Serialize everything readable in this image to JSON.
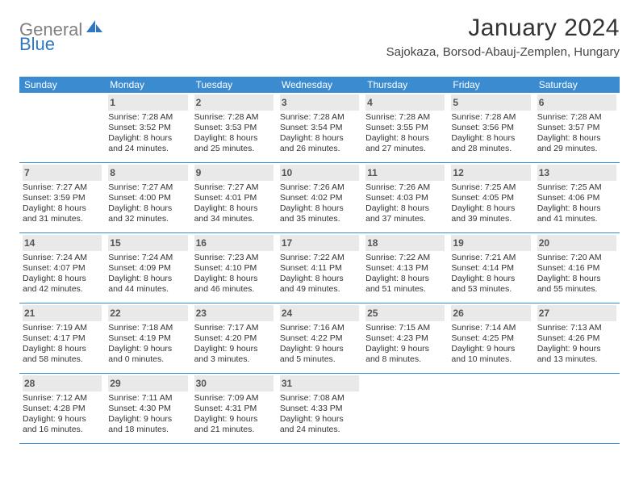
{
  "brand": {
    "text_gray": "General",
    "text_blue": "Blue"
  },
  "title": "January 2024",
  "location": "Sajokaza, Borsod-Abauj-Zemplen, Hungary",
  "colors": {
    "header_bg": "#3a8bd0",
    "daynum_bg": "#e9e9e9",
    "rule": "#3a8bd0",
    "logo_gray": "#808080",
    "logo_blue": "#2f78c1"
  },
  "dow": [
    "Sunday",
    "Monday",
    "Tuesday",
    "Wednesday",
    "Thursday",
    "Friday",
    "Saturday"
  ],
  "weeks": [
    [
      {
        "num": "",
        "sunrise": "",
        "sunset": "",
        "day_l1": "",
        "day_l2": "",
        "empty": true
      },
      {
        "num": "1",
        "sunrise": "Sunrise: 7:28 AM",
        "sunset": "Sunset: 3:52 PM",
        "day_l1": "Daylight: 8 hours",
        "day_l2": "and 24 minutes."
      },
      {
        "num": "2",
        "sunrise": "Sunrise: 7:28 AM",
        "sunset": "Sunset: 3:53 PM",
        "day_l1": "Daylight: 8 hours",
        "day_l2": "and 25 minutes."
      },
      {
        "num": "3",
        "sunrise": "Sunrise: 7:28 AM",
        "sunset": "Sunset: 3:54 PM",
        "day_l1": "Daylight: 8 hours",
        "day_l2": "and 26 minutes."
      },
      {
        "num": "4",
        "sunrise": "Sunrise: 7:28 AM",
        "sunset": "Sunset: 3:55 PM",
        "day_l1": "Daylight: 8 hours",
        "day_l2": "and 27 minutes."
      },
      {
        "num": "5",
        "sunrise": "Sunrise: 7:28 AM",
        "sunset": "Sunset: 3:56 PM",
        "day_l1": "Daylight: 8 hours",
        "day_l2": "and 28 minutes."
      },
      {
        "num": "6",
        "sunrise": "Sunrise: 7:28 AM",
        "sunset": "Sunset: 3:57 PM",
        "day_l1": "Daylight: 8 hours",
        "day_l2": "and 29 minutes."
      }
    ],
    [
      {
        "num": "7",
        "sunrise": "Sunrise: 7:27 AM",
        "sunset": "Sunset: 3:59 PM",
        "day_l1": "Daylight: 8 hours",
        "day_l2": "and 31 minutes."
      },
      {
        "num": "8",
        "sunrise": "Sunrise: 7:27 AM",
        "sunset": "Sunset: 4:00 PM",
        "day_l1": "Daylight: 8 hours",
        "day_l2": "and 32 minutes."
      },
      {
        "num": "9",
        "sunrise": "Sunrise: 7:27 AM",
        "sunset": "Sunset: 4:01 PM",
        "day_l1": "Daylight: 8 hours",
        "day_l2": "and 34 minutes."
      },
      {
        "num": "10",
        "sunrise": "Sunrise: 7:26 AM",
        "sunset": "Sunset: 4:02 PM",
        "day_l1": "Daylight: 8 hours",
        "day_l2": "and 35 minutes."
      },
      {
        "num": "11",
        "sunrise": "Sunrise: 7:26 AM",
        "sunset": "Sunset: 4:03 PM",
        "day_l1": "Daylight: 8 hours",
        "day_l2": "and 37 minutes."
      },
      {
        "num": "12",
        "sunrise": "Sunrise: 7:25 AM",
        "sunset": "Sunset: 4:05 PM",
        "day_l1": "Daylight: 8 hours",
        "day_l2": "and 39 minutes."
      },
      {
        "num": "13",
        "sunrise": "Sunrise: 7:25 AM",
        "sunset": "Sunset: 4:06 PM",
        "day_l1": "Daylight: 8 hours",
        "day_l2": "and 41 minutes."
      }
    ],
    [
      {
        "num": "14",
        "sunrise": "Sunrise: 7:24 AM",
        "sunset": "Sunset: 4:07 PM",
        "day_l1": "Daylight: 8 hours",
        "day_l2": "and 42 minutes."
      },
      {
        "num": "15",
        "sunrise": "Sunrise: 7:24 AM",
        "sunset": "Sunset: 4:09 PM",
        "day_l1": "Daylight: 8 hours",
        "day_l2": "and 44 minutes."
      },
      {
        "num": "16",
        "sunrise": "Sunrise: 7:23 AM",
        "sunset": "Sunset: 4:10 PM",
        "day_l1": "Daylight: 8 hours",
        "day_l2": "and 46 minutes."
      },
      {
        "num": "17",
        "sunrise": "Sunrise: 7:22 AM",
        "sunset": "Sunset: 4:11 PM",
        "day_l1": "Daylight: 8 hours",
        "day_l2": "and 49 minutes."
      },
      {
        "num": "18",
        "sunrise": "Sunrise: 7:22 AM",
        "sunset": "Sunset: 4:13 PM",
        "day_l1": "Daylight: 8 hours",
        "day_l2": "and 51 minutes."
      },
      {
        "num": "19",
        "sunrise": "Sunrise: 7:21 AM",
        "sunset": "Sunset: 4:14 PM",
        "day_l1": "Daylight: 8 hours",
        "day_l2": "and 53 minutes."
      },
      {
        "num": "20",
        "sunrise": "Sunrise: 7:20 AM",
        "sunset": "Sunset: 4:16 PM",
        "day_l1": "Daylight: 8 hours",
        "day_l2": "and 55 minutes."
      }
    ],
    [
      {
        "num": "21",
        "sunrise": "Sunrise: 7:19 AM",
        "sunset": "Sunset: 4:17 PM",
        "day_l1": "Daylight: 8 hours",
        "day_l2": "and 58 minutes."
      },
      {
        "num": "22",
        "sunrise": "Sunrise: 7:18 AM",
        "sunset": "Sunset: 4:19 PM",
        "day_l1": "Daylight: 9 hours",
        "day_l2": "and 0 minutes."
      },
      {
        "num": "23",
        "sunrise": "Sunrise: 7:17 AM",
        "sunset": "Sunset: 4:20 PM",
        "day_l1": "Daylight: 9 hours",
        "day_l2": "and 3 minutes."
      },
      {
        "num": "24",
        "sunrise": "Sunrise: 7:16 AM",
        "sunset": "Sunset: 4:22 PM",
        "day_l1": "Daylight: 9 hours",
        "day_l2": "and 5 minutes."
      },
      {
        "num": "25",
        "sunrise": "Sunrise: 7:15 AM",
        "sunset": "Sunset: 4:23 PM",
        "day_l1": "Daylight: 9 hours",
        "day_l2": "and 8 minutes."
      },
      {
        "num": "26",
        "sunrise": "Sunrise: 7:14 AM",
        "sunset": "Sunset: 4:25 PM",
        "day_l1": "Daylight: 9 hours",
        "day_l2": "and 10 minutes."
      },
      {
        "num": "27",
        "sunrise": "Sunrise: 7:13 AM",
        "sunset": "Sunset: 4:26 PM",
        "day_l1": "Daylight: 9 hours",
        "day_l2": "and 13 minutes."
      }
    ],
    [
      {
        "num": "28",
        "sunrise": "Sunrise: 7:12 AM",
        "sunset": "Sunset: 4:28 PM",
        "day_l1": "Daylight: 9 hours",
        "day_l2": "and 16 minutes."
      },
      {
        "num": "29",
        "sunrise": "Sunrise: 7:11 AM",
        "sunset": "Sunset: 4:30 PM",
        "day_l1": "Daylight: 9 hours",
        "day_l2": "and 18 minutes."
      },
      {
        "num": "30",
        "sunrise": "Sunrise: 7:09 AM",
        "sunset": "Sunset: 4:31 PM",
        "day_l1": "Daylight: 9 hours",
        "day_l2": "and 21 minutes."
      },
      {
        "num": "31",
        "sunrise": "Sunrise: 7:08 AM",
        "sunset": "Sunset: 4:33 PM",
        "day_l1": "Daylight: 9 hours",
        "day_l2": "and 24 minutes."
      },
      {
        "num": "",
        "sunrise": "",
        "sunset": "",
        "day_l1": "",
        "day_l2": "",
        "empty": true
      },
      {
        "num": "",
        "sunrise": "",
        "sunset": "",
        "day_l1": "",
        "day_l2": "",
        "empty": true
      },
      {
        "num": "",
        "sunrise": "",
        "sunset": "",
        "day_l1": "",
        "day_l2": "",
        "empty": true
      }
    ]
  ]
}
